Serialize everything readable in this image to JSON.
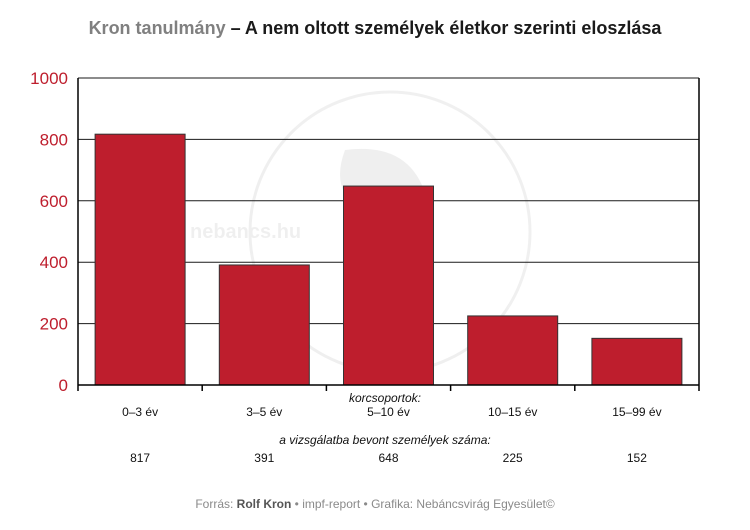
{
  "title": {
    "study": "Kron tanulmány",
    "rest": " – A nem oltott személyek életkor szerinti eloszlása"
  },
  "watermark": {
    "text": "NEBÁNCSVIRÁG EGYESÜLET",
    "url": "nebancs.hu"
  },
  "colors": {
    "bar": "#be1e2d",
    "bar_border": "#333333",
    "axis_tick": "#be1e2d",
    "grid": "#1a1a1a"
  },
  "chart_data": {
    "type": "bar",
    "xlabel": "korcsoportok:",
    "count_label": "a vizsgálatba bevont személyek száma:",
    "categories": [
      "0–3 év",
      "3–5 év",
      "5–10 év",
      "10–15 év",
      "15–99 év"
    ],
    "values": [
      817,
      391,
      648,
      225,
      152
    ],
    "ylim": [
      0,
      1000
    ],
    "yticks": [
      0,
      200,
      400,
      600,
      800,
      1000
    ],
    "grid": true,
    "legend": "none"
  },
  "footer": {
    "prefix": "Forrás: ",
    "source": "Rolf Kron",
    "suffix": " • impf-report • Grafika: Nebáncsvirág Egyesület©"
  }
}
